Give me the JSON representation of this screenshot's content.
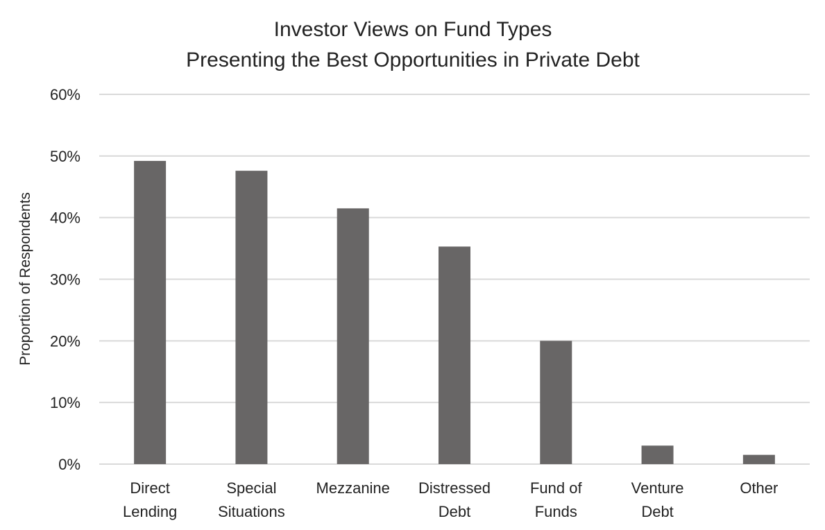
{
  "chart_data": {
    "type": "bar",
    "title_lines": [
      "Investor Views on Fund Types",
      "Presenting the Best Opportunities in Private Debt"
    ],
    "xlabel": "",
    "ylabel": "Proportion of Respondents",
    "categories": [
      [
        "Direct",
        "Lending"
      ],
      [
        "Special",
        "Situations"
      ],
      [
        "Mezzanine"
      ],
      [
        "Distressed",
        "Debt"
      ],
      [
        "Fund of",
        "Funds"
      ],
      [
        "Venture",
        "Debt"
      ],
      [
        "Other"
      ]
    ],
    "values": [
      49.2,
      47.6,
      41.5,
      35.3,
      20.0,
      3.0,
      1.5
    ],
    "ylim": [
      0,
      60
    ],
    "yticks": [
      0,
      10,
      20,
      30,
      40,
      50,
      60
    ],
    "ytick_labels": [
      "0%",
      "10%",
      "20%",
      "30%",
      "40%",
      "50%",
      "60%"
    ],
    "grid": true,
    "legend": "none",
    "bar_color": "#686666"
  }
}
